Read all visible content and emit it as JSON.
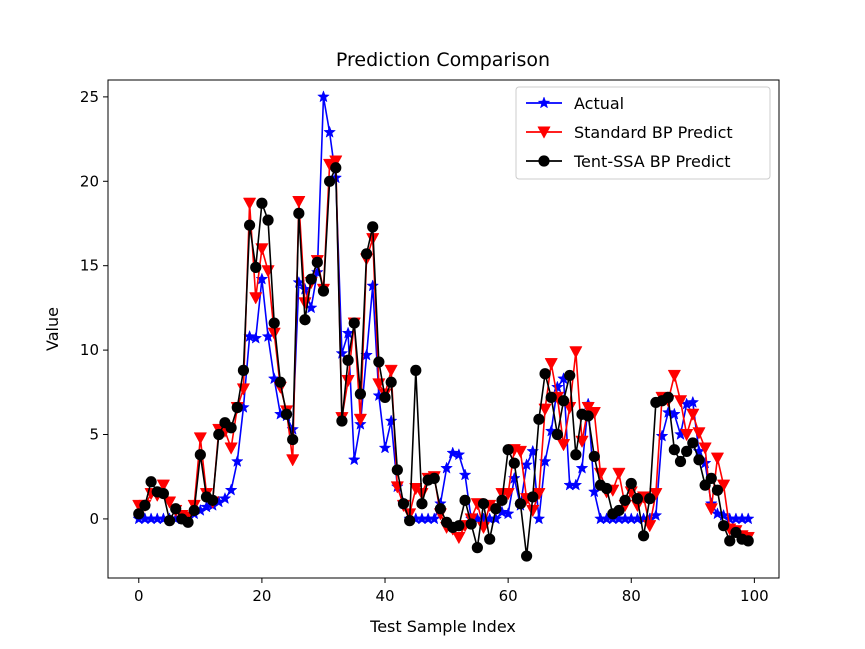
{
  "chart_data": {
    "type": "line",
    "title": "Prediction Comparison",
    "xlabel": "Test Sample Index",
    "ylabel": "Value",
    "xlim": [
      -5,
      104
    ],
    "ylim": [
      -3.5,
      26
    ],
    "xticks": [
      0,
      20,
      40,
      60,
      80,
      100
    ],
    "yticks": [
      0,
      5,
      10,
      15,
      20,
      25
    ],
    "legend_position": "top-right",
    "series": [
      {
        "name": "Actual",
        "color": "#0000ff",
        "marker": "star",
        "values": [
          0,
          0,
          0,
          0,
          0,
          0,
          0,
          0,
          0,
          0.3,
          0.5,
          0.7,
          0.8,
          1.0,
          1.2,
          1.7,
          3.4,
          6.6,
          10.8,
          10.7,
          14.2,
          10.8,
          8.3,
          6.2,
          6.1,
          5.3,
          14.0,
          13.6,
          12.5,
          14.6,
          25.0,
          22.9,
          20.2,
          9.8,
          11.0,
          3.5,
          5.6,
          9.7,
          13.8,
          7.3,
          4.2,
          5.8,
          1.9,
          0.9,
          0,
          0,
          0,
          0,
          0,
          0.9,
          3.0,
          3.9,
          3.8,
          2.6,
          0,
          0,
          0,
          0,
          0,
          0.4,
          0.3,
          2.4,
          0.8,
          3.2,
          4.0,
          0,
          3.4,
          5.2,
          7.8,
          8.3,
          2.0,
          2.0,
          3.0,
          6.8,
          1.6,
          0,
          0,
          0,
          0,
          0,
          0,
          0,
          0,
          0,
          0.2,
          4.9,
          6.3,
          6.2,
          5.0,
          6.8,
          6.9,
          4.0,
          3.3,
          0.9,
          0.3,
          0.2,
          0,
          0,
          0,
          0
        ]
      },
      {
        "name": "Standard BP Predict",
        "color": "#ff0000",
        "marker": "triangle-down",
        "values": [
          0.8,
          0.8,
          1.5,
          1.4,
          2.0,
          1.0,
          0.5,
          0.2,
          0.1,
          0.8,
          4.8,
          1.5,
          1.0,
          5.3,
          5.2,
          4.2,
          6.6,
          7.7,
          18.7,
          13.1,
          16.0,
          14.7,
          11.0,
          7.8,
          6.4,
          3.5,
          18.8,
          12.8,
          14.0,
          15.3,
          13.6,
          21.0,
          21.2,
          6.0,
          8.2,
          11.6,
          5.9,
          15.4,
          16.6,
          8.0,
          7.4,
          8.8,
          1.9,
          0.8,
          0.3,
          1.8,
          1.5,
          2.4,
          2.5,
          0.3,
          -0.5,
          -0.6,
          -1.1,
          -0.4,
          0,
          0.9,
          -0.5,
          0.8,
          0.6,
          1.5,
          1.5,
          4.1,
          4.0,
          1.2,
          0.5,
          1.5,
          6.5,
          9.2,
          7.2,
          4.4,
          6.6,
          9.9,
          4.6,
          6.6,
          6.3,
          2.7,
          1.6,
          1.7,
          2.7,
          0.8,
          1.6,
          0.8,
          1.3,
          -0.4,
          1.5,
          7.2,
          7.0,
          8.5,
          7.0,
          5.0,
          6.2,
          5.1,
          4.2,
          0.6,
          3.6,
          2.0,
          -0.6,
          -0.7,
          -1.0,
          -1.1
        ]
      },
      {
        "name": "Tent-SSA BP Predict",
        "color": "#000000",
        "marker": "circle",
        "values": [
          0.3,
          0.8,
          2.2,
          1.6,
          1.5,
          -0.1,
          0.6,
          0,
          -0.2,
          0.5,
          3.8,
          1.3,
          1.1,
          5.0,
          5.7,
          5.4,
          6.6,
          8.8,
          17.4,
          14.9,
          18.7,
          17.7,
          11.6,
          8.1,
          6.2,
          4.7,
          18.1,
          11.8,
          14.2,
          15.2,
          13.5,
          20.0,
          20.8,
          5.8,
          9.4,
          11.6,
          7.4,
          15.7,
          17.3,
          9.3,
          7.2,
          8.1,
          2.9,
          0.9,
          -0.1,
          8.8,
          0.9,
          2.3,
          2.4,
          0.6,
          -0.2,
          -0.5,
          -0.4,
          1.1,
          -0.3,
          -1.7,
          0.9,
          -1.2,
          0.6,
          1.1,
          4.1,
          3.3,
          0.9,
          -2.2,
          1.3,
          5.9,
          8.6,
          7.2,
          5.0,
          7.0,
          8.5,
          3.8,
          6.2,
          6.1,
          3.7,
          2.0,
          1.8,
          0.3,
          0.5,
          1.1,
          2.1,
          1.2,
          -1.0,
          1.2,
          6.9,
          7.0,
          7.2,
          4.1,
          3.4,
          4.0,
          4.5,
          3.5,
          2.0,
          2.4,
          1.7,
          -0.4,
          -1.3,
          -0.8,
          -1.2,
          -1.3
        ]
      }
    ]
  }
}
